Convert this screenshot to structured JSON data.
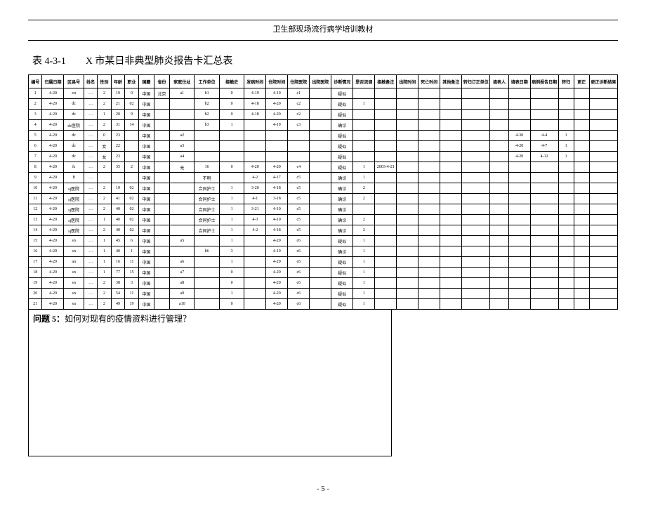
{
  "header": "卫生部现场流行病学培训教材",
  "title": "表 4-3-1　　X 市某日非典型肺炎报告卡汇总表",
  "columns": [
    "编号",
    "归属日期",
    "区县号",
    "姓名",
    "性别",
    "年龄",
    "职业",
    "国籍",
    "省份",
    "家庭住址",
    "工作单位",
    "接触史",
    "发病时间",
    "住院时间",
    "住院医院",
    "出院医院",
    "诊断情况",
    "是否流调",
    "接触备注",
    "出院时间",
    "死亡时间",
    "其他备注",
    "转归订正单位",
    "填表人",
    "填表日期",
    "病例报告日期",
    "转归",
    "更正",
    "更正诊断结果"
  ],
  "rows": [
    [
      "1",
      "4-20",
      "cn",
      "…",
      "2",
      "19",
      "0",
      "中国",
      "北京",
      "a1",
      "b1",
      "0",
      "4-19",
      "4-19",
      "c1",
      "",
      "疑似",
      "",
      "",
      "",
      "",
      "",
      "",
      "",
      "",
      "",
      "",
      "",
      ""
    ],
    [
      "2",
      "4-20",
      "dc",
      "…",
      "2",
      "21",
      "02",
      "中国",
      "",
      "",
      "b2",
      "0",
      "4-18",
      "4-20",
      "c2",
      "",
      "疑似",
      "1",
      "",
      "",
      "",
      "",
      "",
      "",
      "",
      "",
      "",
      "",
      ""
    ],
    [
      "3",
      "4-20",
      "dc",
      "…",
      "1",
      "20",
      "9",
      "中国",
      "",
      "",
      "b2",
      "0",
      "4-18",
      "4-20",
      "c2",
      "",
      "疑似",
      "",
      "",
      "",
      "",
      "",
      "",
      "",
      "",
      "",
      "",
      "",
      ""
    ],
    [
      "4",
      "4-20",
      "dc医院",
      "…",
      "2",
      "31",
      "14",
      "中国",
      "",
      "",
      "b3",
      "1",
      "",
      "4-19",
      "c3",
      "",
      "确诊",
      "",
      "",
      "",
      "",
      "",
      "",
      "",
      "",
      "",
      "",
      "",
      ""
    ],
    [
      "5",
      "4-20",
      "dc",
      "…",
      "0",
      "23",
      "",
      "中国",
      "",
      "a2",
      "",
      "",
      "",
      "",
      "",
      "",
      "疑似",
      "",
      "",
      "",
      "",
      "",
      "",
      "",
      "4-30",
      "4-4",
      "1",
      "",
      ""
    ],
    [
      "6",
      "4-20",
      "dc",
      "…",
      "女",
      "22",
      "",
      "中国",
      "",
      "a3",
      "",
      "",
      "",
      "",
      "",
      "",
      "疑似",
      "",
      "",
      "",
      "",
      "",
      "",
      "",
      "4-20",
      "4-7",
      "1",
      "",
      ""
    ],
    [
      "7",
      "4-20",
      "dc",
      "…",
      "女",
      "23",
      "",
      "中国",
      "",
      "a4",
      "",
      "",
      "",
      "",
      "",
      "",
      "疑似",
      "",
      "",
      "",
      "",
      "",
      "",
      "",
      "4-20",
      "4-12",
      "1",
      "",
      ""
    ],
    [
      "8",
      "4-20",
      "fs",
      "…",
      "2",
      "35",
      "2",
      "中国",
      "",
      "无",
      "16",
      "0",
      "4-20",
      "4-20",
      "c4",
      "",
      "疑似",
      "1",
      "2003-4-21",
      "",
      "",
      "",
      "",
      "",
      "",
      "",
      "",
      "",
      ""
    ],
    [
      "9",
      "4-20",
      "ft",
      "…",
      "",
      "",
      "",
      "中国",
      "",
      "",
      "不明",
      "",
      "4-2",
      "4-17",
      "c5",
      "",
      "确诊",
      "1",
      "",
      "",
      "",
      "",
      "",
      "",
      "",
      "",
      "",
      "",
      ""
    ],
    [
      "10",
      "4-20",
      "sj医院",
      "…",
      "2",
      "19",
      "02",
      "中国",
      "",
      "",
      "合同护士",
      "1",
      "3-20",
      "4-18",
      "c5",
      "",
      "确诊",
      "2",
      "",
      "",
      "",
      "",
      "",
      "",
      "",
      "",
      "",
      "",
      ""
    ],
    [
      "11",
      "4-20",
      "sj医院",
      "…",
      "2",
      "41",
      "02",
      "中国",
      "",
      "",
      "合同护士",
      "1",
      "4-1",
      "3-18",
      "c5",
      "",
      "确诊",
      "2",
      "",
      "",
      "",
      "",
      "",
      "",
      "",
      "",
      "",
      "",
      ""
    ],
    [
      "12",
      "4-20",
      "sj医院",
      "…",
      "2",
      "40",
      "02",
      "中国",
      "",
      "",
      "合同护士",
      "1",
      "3-21",
      "4-10",
      "c5",
      "",
      "确诊",
      "",
      "",
      "",
      "",
      "",
      "",
      "",
      "",
      "",
      "",
      "",
      ""
    ],
    [
      "13",
      "4-20",
      "sj医院",
      "…",
      "1",
      "40",
      "02",
      "中国",
      "",
      "",
      "合同护士",
      "1",
      "4-3",
      "4-10",
      "c5",
      "",
      "确诊",
      "2",
      "",
      "",
      "",
      "",
      "",
      "",
      "",
      "",
      "",
      "",
      ""
    ],
    [
      "14",
      "4-20",
      "sj医院",
      "…",
      "2",
      "40",
      "02",
      "中国",
      "",
      "",
      "合同护士",
      "1",
      "4-2",
      "4-18",
      "c5",
      "",
      "确诊",
      "2",
      "",
      "",
      "",
      "",
      "",
      "",
      "",
      "",
      "",
      "",
      ""
    ],
    [
      "15",
      "4-20",
      "sn",
      "…",
      "1",
      "45",
      "6",
      "中国",
      "",
      "a5",
      "",
      "1",
      "",
      "4-20",
      "c6",
      "",
      "疑似",
      "1",
      "",
      "",
      "",
      "",
      "",
      "",
      "",
      "",
      "",
      "",
      ""
    ],
    [
      "16",
      "4-20",
      "sn",
      "…",
      "1",
      "40",
      "1",
      "中国",
      "",
      "",
      "b6",
      "3",
      "",
      "4-19",
      "c6",
      "",
      "确诊",
      "1",
      "",
      "",
      "",
      "",
      "",
      "",
      "",
      "",
      "",
      "",
      ""
    ],
    [
      "17",
      "4-20",
      "an",
      "…",
      "1",
      "16",
      "11",
      "中国",
      "",
      "a6",
      "",
      "1",
      "",
      "4-20",
      "c6",
      "",
      "疑似",
      "1",
      "",
      "",
      "",
      "",
      "",
      "",
      "",
      "",
      "",
      "",
      ""
    ],
    [
      "18",
      "4-20",
      "sn",
      "…",
      "1",
      "77",
      "15",
      "中国",
      "",
      "a7",
      "",
      "0",
      "",
      "4-20",
      "c6",
      "",
      "疑似",
      "1",
      "",
      "",
      "",
      "",
      "",
      "",
      "",
      "",
      "",
      "",
      ""
    ],
    [
      "19",
      "4-20",
      "sn",
      "…",
      "2",
      "38",
      "3",
      "中国",
      "",
      "a8",
      "",
      "0",
      "",
      "4-20",
      "c6",
      "",
      "疑似",
      "1",
      "",
      "",
      "",
      "",
      "",
      "",
      "",
      "",
      "",
      "",
      ""
    ],
    [
      "20",
      "4-20",
      "sn",
      "…",
      "2",
      "54",
      "11",
      "中国",
      "",
      "a9",
      "",
      "1",
      "",
      "4-20",
      "c6",
      "",
      "疑似",
      "1",
      "",
      "",
      "",
      "",
      "",
      "",
      "",
      "",
      "",
      "",
      ""
    ],
    [
      "21",
      "4-20",
      "sn",
      "…",
      "2",
      "49",
      "19",
      "中国",
      "",
      "a10",
      "",
      "0",
      "",
      "4-20",
      "c6",
      "",
      "疑似",
      "1",
      "",
      "",
      "",
      "",
      "",
      "",
      "",
      "",
      "",
      "",
      ""
    ]
  ],
  "question_label": "问题 5：",
  "question_text": "如何对现有的疫情资料进行管理？",
  "page_number": "- 5 -",
  "col_widths_pct": [
    2.2,
    3.5,
    3.2,
    2.2,
    2.2,
    2.2,
    2.2,
    2.5,
    2.5,
    4.0,
    4.0,
    4.0,
    3.5,
    3.5,
    3.5,
    3.5,
    3.5,
    3.5,
    3.5,
    3.5,
    3.5,
    3.5,
    4.5,
    3.0,
    3.5,
    4.5,
    2.5,
    2.5,
    4.5
  ]
}
